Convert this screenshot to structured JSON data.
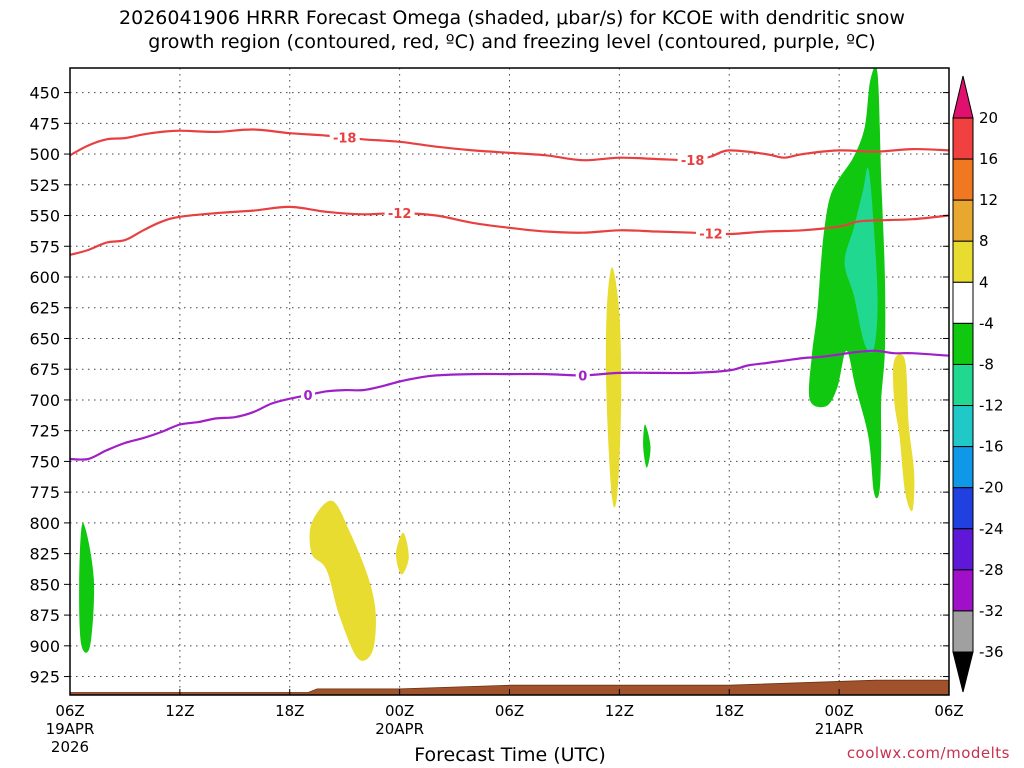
{
  "title_line1": "2026041906 HRRR Forecast Omega (shaded, μbar/s) for KCOE with dendritic snow",
  "title_line2": "growth region (contoured, red, ºC) and freezing level (contoured, purple, ºC)",
  "credit": "coolwx.com/modelts",
  "chart_data": {
    "type": "contour",
    "title": "2026041906 HRRR Forecast Omega (shaded, μbar/s) for KCOE with dendritic snow growth region (contoured, red, ºC) and freezing level (contoured, purple, ºC)",
    "xlabel": "Forecast Time (UTC)",
    "ylabel": "",
    "x_unit": "forecast hour",
    "xlim": [
      0,
      48
    ],
    "ylim": [
      940,
      430
    ],
    "y_ticks": [
      450,
      475,
      500,
      525,
      550,
      575,
      600,
      625,
      650,
      675,
      700,
      725,
      750,
      775,
      800,
      825,
      850,
      875,
      900,
      925
    ],
    "x_ticks": [
      {
        "hour": 0,
        "label": "06Z",
        "sub1": "19APR",
        "sub2": "2026"
      },
      {
        "hour": 6,
        "label": "12Z",
        "sub1": "",
        "sub2": ""
      },
      {
        "hour": 12,
        "label": "18Z",
        "sub1": "",
        "sub2": ""
      },
      {
        "hour": 18,
        "label": "00Z",
        "sub1": "20APR",
        "sub2": ""
      },
      {
        "hour": 24,
        "label": "06Z",
        "sub1": "",
        "sub2": ""
      },
      {
        "hour": 30,
        "label": "12Z",
        "sub1": "",
        "sub2": ""
      },
      {
        "hour": 36,
        "label": "18Z",
        "sub1": "",
        "sub2": ""
      },
      {
        "hour": 42,
        "label": "00Z",
        "sub1": "21APR",
        "sub2": ""
      },
      {
        "hour": 48,
        "label": "06Z",
        "sub1": "",
        "sub2": ""
      }
    ],
    "grid": true,
    "colorbar": {
      "position": "right",
      "levels": [
        20,
        16,
        12,
        8,
        4,
        -4,
        -8,
        -12,
        -16,
        -20,
        -24,
        -28,
        -32,
        -36
      ],
      "colors": [
        "#e0106e",
        "#f04040",
        "#f07820",
        "#e8a830",
        "#e8dc30",
        "#ffffff",
        "#10c810",
        "#20d890",
        "#20c8c8",
        "#1098e8",
        "#2040e0",
        "#6018d8",
        "#a010c8",
        "#a0a0a0",
        "#000000"
      ]
    },
    "contours": [
      {
        "label": "-18",
        "color": "#e84040",
        "points": [
          [
            0,
            501
          ],
          [
            1,
            493
          ],
          [
            2,
            488
          ],
          [
            3,
            487
          ],
          [
            4,
            484
          ],
          [
            5,
            482
          ],
          [
            6,
            481
          ],
          [
            8,
            482
          ],
          [
            10,
            480
          ],
          [
            12,
            483
          ],
          [
            14,
            485
          ],
          [
            16,
            488
          ],
          [
            18,
            490
          ],
          [
            20,
            494
          ],
          [
            22,
            497
          ],
          [
            24,
            499
          ],
          [
            26,
            501
          ],
          [
            28,
            505
          ],
          [
            30,
            503
          ],
          [
            32,
            504
          ],
          [
            34,
            505
          ],
          [
            35,
            502
          ],
          [
            36,
            497
          ],
          [
            38,
            500
          ],
          [
            39,
            503
          ],
          [
            40,
            500
          ],
          [
            42,
            497
          ],
          [
            44,
            498
          ],
          [
            46,
            496
          ],
          [
            48,
            497
          ]
        ],
        "labels_at": [
          15,
          34
        ]
      },
      {
        "label": "-12",
        "color": "#e84040",
        "points": [
          [
            0,
            582
          ],
          [
            1,
            578
          ],
          [
            2,
            572
          ],
          [
            3,
            570
          ],
          [
            4,
            562
          ],
          [
            5,
            555
          ],
          [
            6,
            551
          ],
          [
            8,
            548
          ],
          [
            10,
            546
          ],
          [
            12,
            543
          ],
          [
            14,
            547
          ],
          [
            16,
            549
          ],
          [
            18,
            548
          ],
          [
            20,
            550
          ],
          [
            22,
            556
          ],
          [
            24,
            560
          ],
          [
            26,
            563
          ],
          [
            28,
            564
          ],
          [
            30,
            562
          ],
          [
            32,
            563
          ],
          [
            34,
            564
          ],
          [
            36,
            565
          ],
          [
            38,
            563
          ],
          [
            40,
            562
          ],
          [
            42,
            559
          ],
          [
            43,
            555
          ],
          [
            44,
            554
          ],
          [
            46,
            553
          ],
          [
            48,
            550
          ]
        ],
        "labels_at": [
          18,
          35
        ]
      },
      {
        "label": "0",
        "color": "#a020c8",
        "points": [
          [
            0,
            748
          ],
          [
            1,
            748
          ],
          [
            2,
            741
          ],
          [
            3,
            735
          ],
          [
            4,
            731
          ],
          [
            5,
            726
          ],
          [
            6,
            720
          ],
          [
            7,
            718
          ],
          [
            8,
            715
          ],
          [
            9,
            714
          ],
          [
            10,
            710
          ],
          [
            11,
            703
          ],
          [
            12,
            699
          ],
          [
            13,
            696
          ],
          [
            14,
            693
          ],
          [
            15,
            692
          ],
          [
            16,
            692
          ],
          [
            17,
            689
          ],
          [
            18,
            685
          ],
          [
            19,
            682
          ],
          [
            20,
            680
          ],
          [
            22,
            679
          ],
          [
            24,
            679
          ],
          [
            26,
            679
          ],
          [
            28,
            680
          ],
          [
            30,
            678
          ],
          [
            32,
            678
          ],
          [
            34,
            678
          ],
          [
            36,
            676
          ],
          [
            37,
            672
          ],
          [
            38,
            670
          ],
          [
            39,
            668
          ],
          [
            40,
            666
          ],
          [
            41,
            665
          ],
          [
            42,
            663
          ],
          [
            43,
            661
          ],
          [
            44,
            660
          ],
          [
            45,
            662
          ],
          [
            46,
            662
          ],
          [
            48,
            664
          ]
        ],
        "labels_at": [
          13,
          28
        ]
      }
    ],
    "omega_regions": [
      {
        "level": "-8",
        "color": "#10c810",
        "points": [
          [
            0.7,
            800
          ],
          [
            1.3,
            845
          ],
          [
            1.1,
            900
          ],
          [
            0.6,
            898
          ],
          [
            0.5,
            848
          ]
        ]
      },
      {
        "level": "4",
        "color": "#e8dc30",
        "points": [
          [
            13.2,
            800
          ],
          [
            14.3,
            782
          ],
          [
            15.3,
            808
          ],
          [
            16.3,
            845
          ],
          [
            16.7,
            875
          ],
          [
            16.5,
            905
          ],
          [
            15.7,
            910
          ],
          [
            14.7,
            875
          ],
          [
            14.0,
            838
          ],
          [
            13.2,
            825
          ]
        ]
      },
      {
        "level": "4",
        "color": "#e8dc30",
        "points": [
          [
            18.2,
            808
          ],
          [
            18.5,
            828
          ],
          [
            18.1,
            842
          ],
          [
            17.8,
            825
          ]
        ]
      },
      {
        "level": "4",
        "color": "#e8dc30",
        "points": [
          [
            29.6,
            592
          ],
          [
            30.0,
            630
          ],
          [
            30.1,
            700
          ],
          [
            29.9,
            775
          ],
          [
            29.6,
            780
          ],
          [
            29.3,
            700
          ],
          [
            29.3,
            630
          ]
        ]
      },
      {
        "level": "-8",
        "color": "#10c810",
        "points": [
          [
            31.4,
            720
          ],
          [
            31.7,
            738
          ],
          [
            31.5,
            755
          ],
          [
            31.3,
            738
          ]
        ]
      },
      {
        "level": "4",
        "color": "#e8dc30",
        "points": [
          [
            45.0,
            668
          ],
          [
            45.6,
            668
          ],
          [
            45.8,
            720
          ],
          [
            46.1,
            760
          ],
          [
            46.0,
            790
          ],
          [
            45.6,
            775
          ],
          [
            45.3,
            730
          ],
          [
            45.0,
            700
          ]
        ]
      },
      {
        "level": "-8",
        "color": "#10c810",
        "points": [
          [
            44.1,
            435
          ],
          [
            44.3,
            520
          ],
          [
            44.5,
            600
          ],
          [
            44.5,
            660
          ],
          [
            44.3,
            700
          ],
          [
            44.3,
            740
          ],
          [
            44.2,
            775
          ],
          [
            43.9,
            775
          ],
          [
            43.6,
            730
          ],
          [
            42.9,
            690
          ],
          [
            42.4,
            660
          ],
          [
            41.9,
            690
          ],
          [
            41.3,
            705
          ],
          [
            40.4,
            700
          ],
          [
            40.5,
            665
          ],
          [
            40.8,
            630
          ],
          [
            41.0,
            590
          ],
          [
            41.2,
            560
          ],
          [
            41.5,
            535
          ],
          [
            42.0,
            520
          ],
          [
            42.8,
            502
          ],
          [
            43.4,
            478
          ],
          [
            43.7,
            440
          ]
        ]
      },
      {
        "level": "-12",
        "color": "#20d890",
        "points": [
          [
            43.6,
            512
          ],
          [
            43.9,
            560
          ],
          [
            44.1,
            620
          ],
          [
            43.9,
            658
          ],
          [
            43.4,
            655
          ],
          [
            42.8,
            615
          ],
          [
            42.3,
            588
          ],
          [
            42.8,
            560
          ],
          [
            43.3,
            530
          ]
        ]
      }
    ],
    "surface": {
      "color": "#a0522d",
      "points": [
        [
          0,
          938
        ],
        [
          13,
          938
        ],
        [
          13.5,
          935
        ],
        [
          18,
          935
        ],
        [
          24,
          932
        ],
        [
          30,
          932
        ],
        [
          36,
          932
        ],
        [
          40,
          930
        ],
        [
          44,
          928
        ],
        [
          48,
          928
        ]
      ]
    }
  }
}
